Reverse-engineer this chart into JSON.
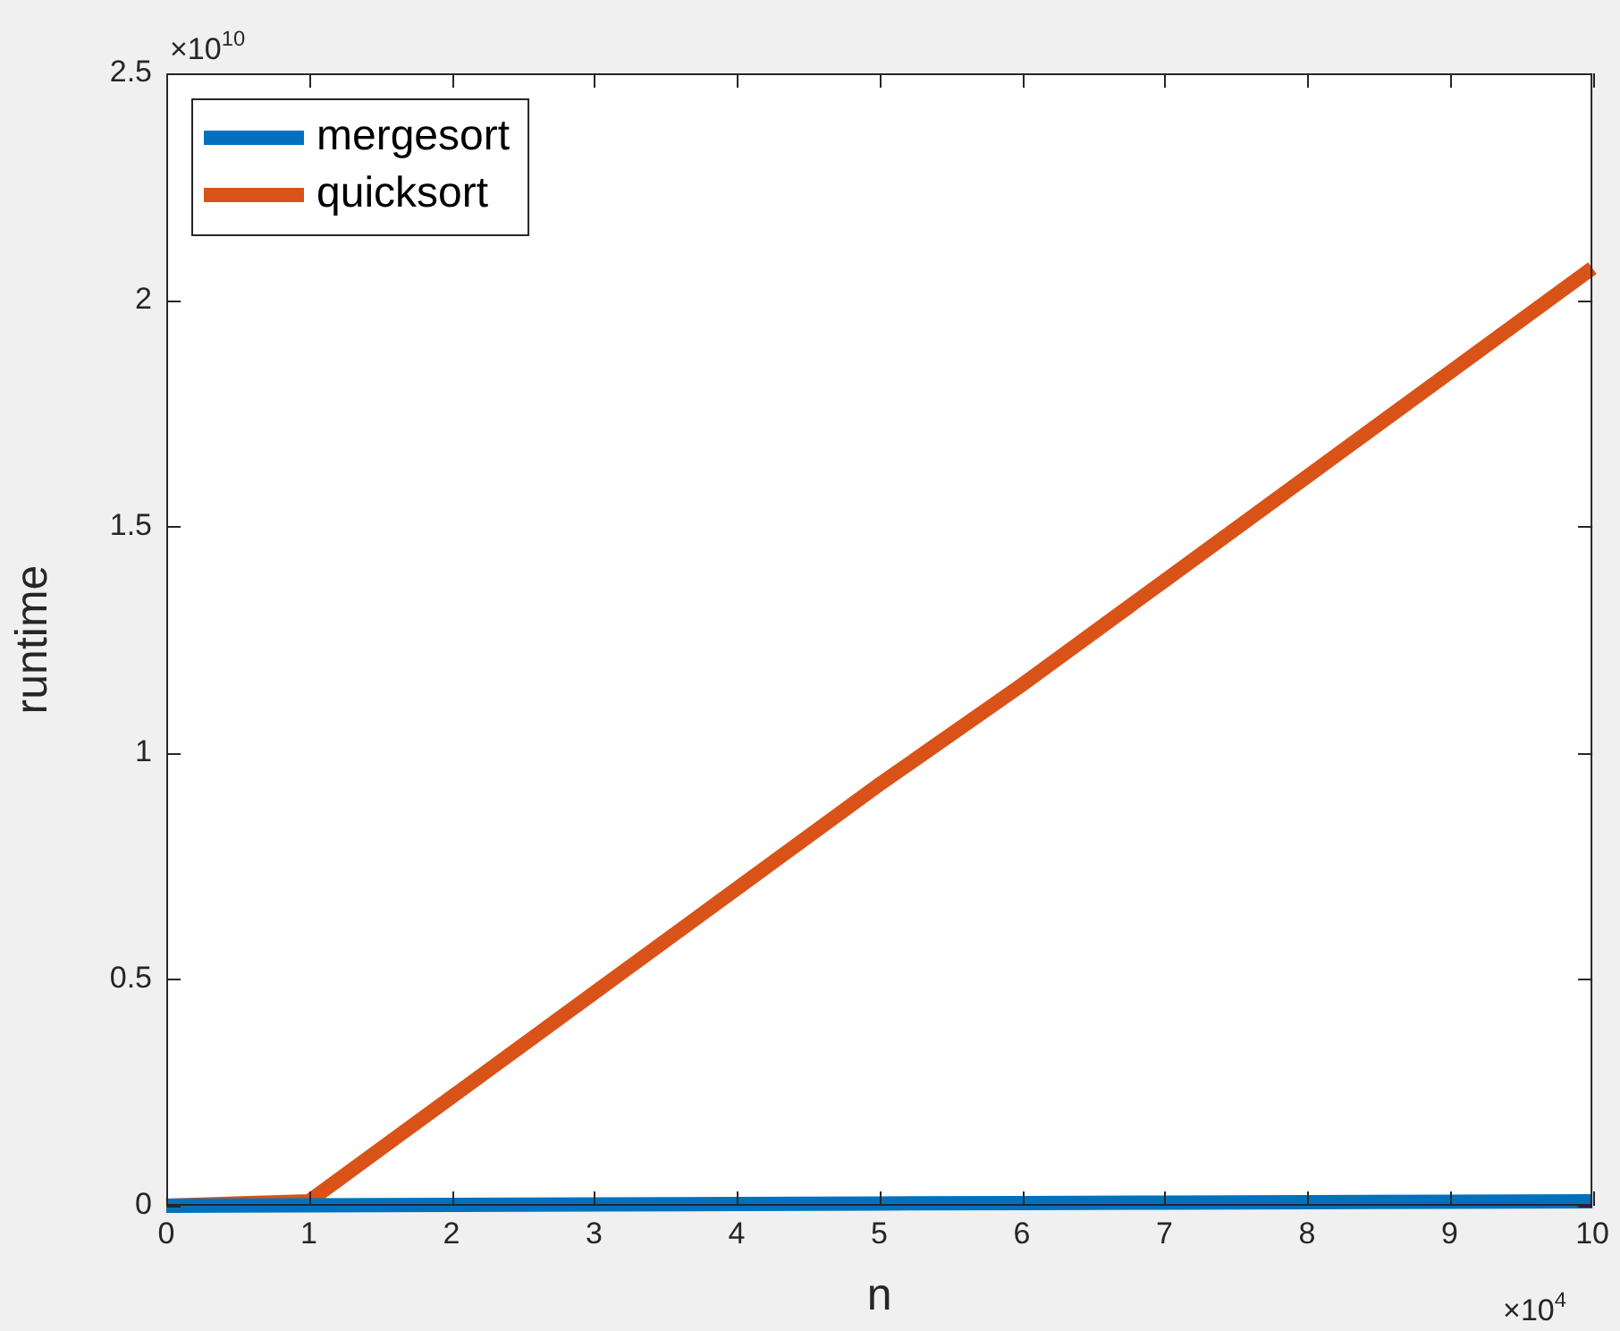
{
  "chart_data": {
    "type": "line",
    "xlabel": "n",
    "ylabel": "runtime",
    "x": [
      0,
      1,
      2,
      3,
      4,
      5,
      6,
      7,
      8,
      9,
      10
    ],
    "series": [
      {
        "name": "mergesort",
        "color": "#0072bd",
        "values": [
          0,
          0.001,
          0.002,
          0.003,
          0.004,
          0.005,
          0.006,
          0.007,
          0.008,
          0.009,
          0.01
        ]
      },
      {
        "name": "quicksort",
        "color": "#d95319",
        "values": [
          0,
          0.01,
          0.24,
          0.47,
          0.7,
          0.93,
          1.15,
          1.38,
          1.61,
          1.84,
          2.07
        ]
      }
    ],
    "xlim": [
      0,
      10
    ],
    "xticks": [
      0,
      1,
      2,
      3,
      4,
      5,
      6,
      7,
      8,
      9,
      10
    ],
    "ylim": [
      0,
      2.5
    ],
    "yticks": [
      0,
      0.5,
      1,
      1.5,
      2,
      2.5
    ],
    "annotations": [
      "×10$^{10}$",
      "×10$^{4}$"
    ],
    "legend": "top left",
    "marker": "none",
    "line_style": "solid"
  }
}
